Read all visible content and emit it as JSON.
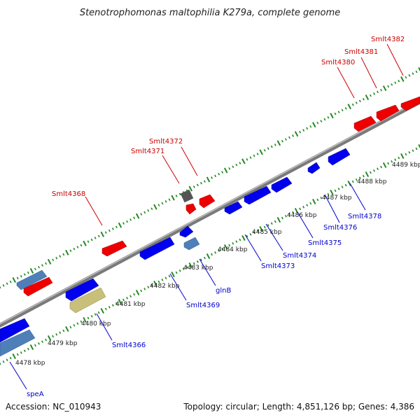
{
  "title": "Stenotrophomonas maltophilia K279a, complete genome",
  "footer": {
    "accession": "Accession: NC_010943",
    "summary": "Topology: circular; Length: 4,851,126 bp; Genes: 4,386"
  },
  "colors": {
    "forward_gene": "#ee0000",
    "reverse_gene": "#0000ee",
    "rna_gene": "#4f7fb8",
    "pseudo_gene": "#c8c07a",
    "other_gene": "#555555",
    "backbone": "#8a8a8a",
    "tick": "#228822",
    "label_red": "#cc0000",
    "label_blue": "#0000cc"
  },
  "scale_labels": [
    "4478 kbp",
    "4479 kbp",
    "4480 kbp",
    "4481 kbp",
    "4482 kbp",
    "4483 kbp",
    "4484 kbp",
    "4485 kbp",
    "4486 kbp",
    "4487 kbp",
    "4488 kbp",
    "4489 kbp"
  ],
  "forward_labels": [
    "Smlt4368",
    "Smlt4371",
    "Smlt4372",
    "Smlt4380",
    "Smlt4381",
    "Smlt4382"
  ],
  "reverse_labels": [
    "speA",
    "Smlt4366",
    "Smlt4369",
    "glnB",
    "Smlt4373",
    "Smlt4374",
    "Smlt4375",
    "Smlt4376",
    "Smlt4378"
  ]
}
